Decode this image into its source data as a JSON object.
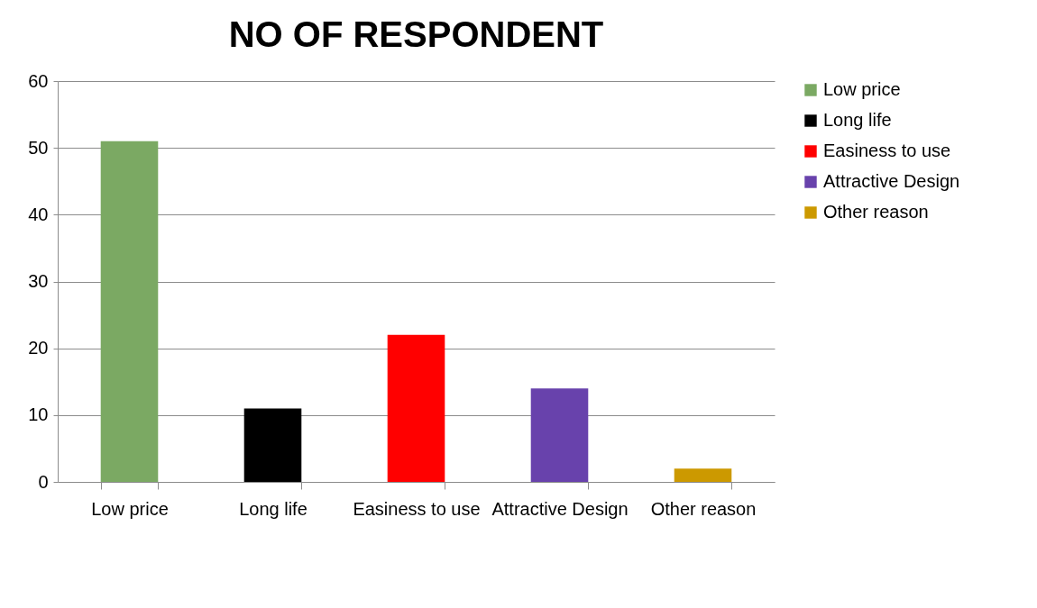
{
  "chart_data": {
    "type": "bar",
    "title": "NO OF RESPONDENT",
    "categories": [
      "Low price",
      "Long life",
      "Easiness to use",
      "Attractive Design",
      "Other reason"
    ],
    "series": [
      {
        "name": "Low price",
        "color": "#7ba963",
        "values": [
          51,
          null,
          null,
          null,
          null
        ]
      },
      {
        "name": "Long life",
        "color": "#000000",
        "values": [
          null,
          11,
          null,
          null,
          null
        ]
      },
      {
        "name": "Easiness to use",
        "color": "#ff0000",
        "values": [
          null,
          null,
          22,
          null,
          null
        ]
      },
      {
        "name": "Attractive Design",
        "color": "#6842ac",
        "values": [
          null,
          null,
          null,
          14,
          null
        ]
      },
      {
        "name": "Other reason",
        "color": "#cc9900",
        "values": [
          null,
          null,
          null,
          null,
          2
        ]
      }
    ],
    "ylim": [
      0,
      60
    ],
    "yticks": [
      0,
      10,
      20,
      30,
      40,
      50,
      60
    ],
    "grid": "y",
    "legend": "right"
  }
}
